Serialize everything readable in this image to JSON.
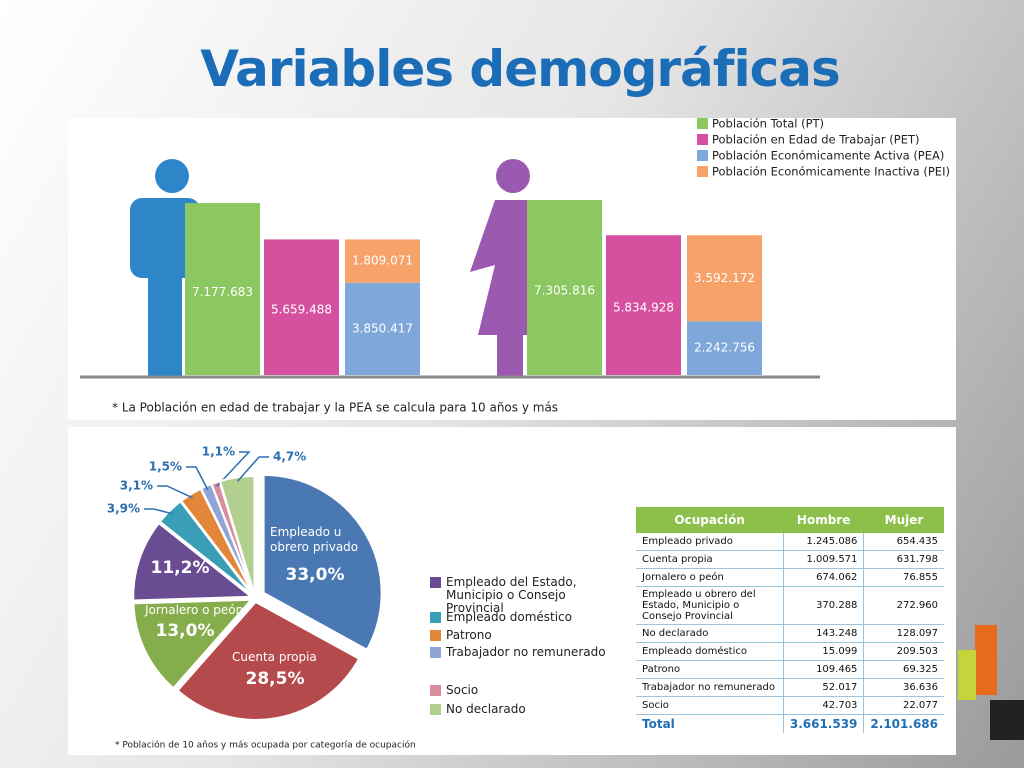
{
  "title": "Variables demográficas",
  "chart_data": [
    {
      "type": "grouped-stacked-bar",
      "categories": [
        null,
        null
      ],
      "series": [
        {
          "name": "Población Total (PT)",
          "color": "#8cc862",
          "values": [
            7177683,
            7305816
          ],
          "value_labels": [
            "7.177.683",
            "7.305.816"
          ]
        },
        {
          "name": "Población en Edad de Trabajar (PET)",
          "color": "#d5509e",
          "values": [
            5659488,
            5834928
          ],
          "value_labels": [
            "5.659.488",
            "5.834.928"
          ]
        },
        {
          "name": "Población Económicamente Activa (PEA)",
          "color": "#7fa7da",
          "values": [
            3850417,
            2242756
          ],
          "value_labels": [
            "3.850.417",
            "2.242.756"
          ]
        },
        {
          "name": "Población Económicamente Inactiva (PEI)",
          "color": "#f6a26a",
          "values": [
            1809071,
            3592172
          ],
          "value_labels": [
            "1.809.071",
            "3.592.172"
          ]
        }
      ],
      "note": "* La Población en edad de trabajar y la PEA se calcula para 10 años y más"
    },
    {
      "type": "pie",
      "categories": [
        "Empleado u obrero privado",
        "Cuenta propia",
        "Jornalero o peón",
        "Empleado del Estado, Municipio o Consejo Provincial",
        "Empleado doméstico",
        "Patrono",
        "Trabajador no remunerado",
        "Socio",
        "No declarado"
      ],
      "values": [
        33.0,
        28.5,
        13.0,
        11.2,
        3.9,
        3.1,
        1.5,
        1.1,
        4.7
      ],
      "value_labels": [
        "33,0%",
        "28,5%",
        "13,0%",
        "11,2%",
        "3,9%",
        "3,1%",
        "1,5%",
        "1,1%",
        "4,7%"
      ],
      "colors": [
        "#4a78b2",
        "#b54a4c",
        "#86ad4c",
        "#6a4c93",
        "#3a9fb6",
        "#e2873a",
        "#8ea5d6",
        "#d98e9b",
        "#b3cf90"
      ],
      "note": "* Población de 10 años y más ocupada por categoría de ocupación"
    }
  ],
  "table": {
    "header": [
      "Ocupación",
      "Hombre",
      "Mujer"
    ],
    "rows": [
      [
        "Empleado privado",
        "1.245.086",
        "654.435"
      ],
      [
        "Cuenta  propia",
        "1.009.571",
        "631.798"
      ],
      [
        "Jornalero o peón",
        "674.062",
        "76.855"
      ],
      [
        "Empleado u obrero del Estado, Municipio o Consejo Provincial",
        "370.288",
        "272.960"
      ],
      [
        "No declarado",
        "143.248",
        "128.097"
      ],
      [
        "Empleado doméstico",
        "15.099",
        "209.503"
      ],
      [
        "Patrono",
        "109.465",
        "69.325"
      ],
      [
        "Trabajador no remunerado",
        "52.017",
        "36.636"
      ],
      [
        "Socio",
        "42.703",
        "22.077"
      ]
    ],
    "total": [
      "Total",
      "3.661.539",
      "2.101.686"
    ]
  }
}
